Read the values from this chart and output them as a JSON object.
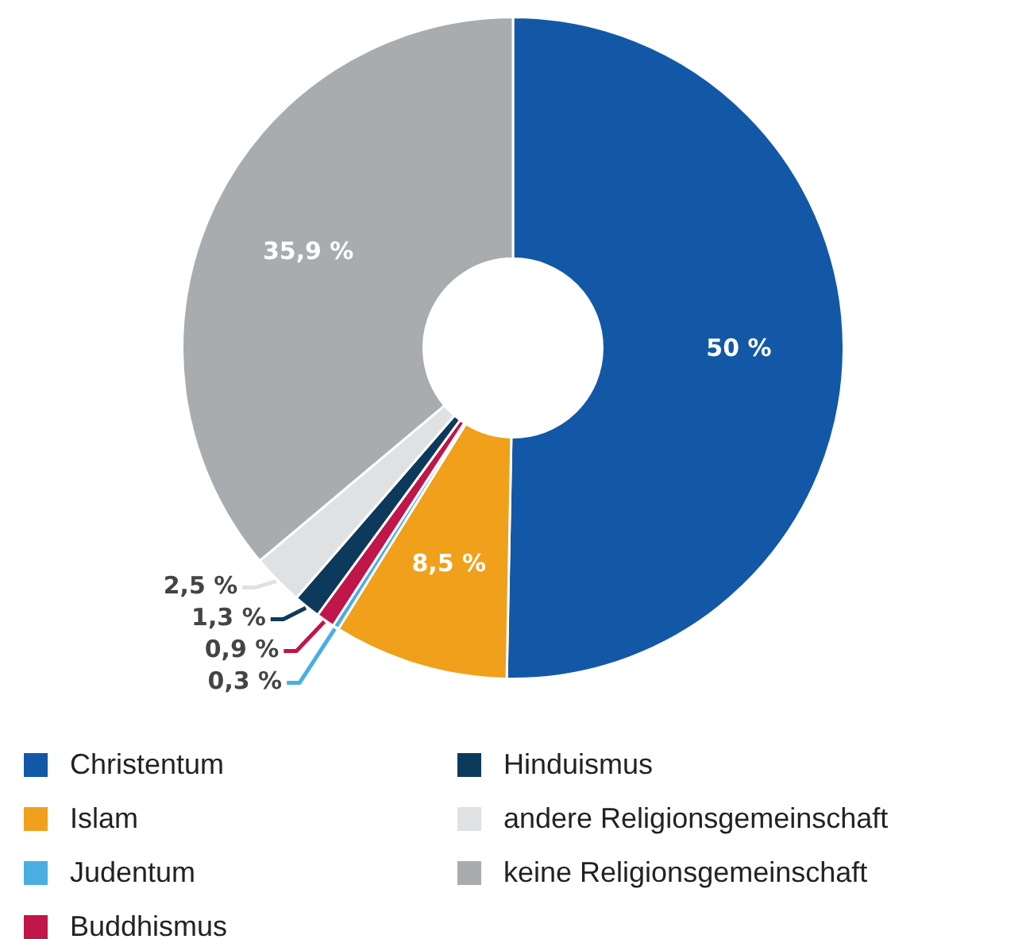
{
  "chart_data": {
    "type": "donut",
    "categories": [
      "Christentum",
      "Islam",
      "Judentum",
      "Buddhismus",
      "Hinduismus",
      "andere Religionsgemeinschaft",
      "keine Religionsgemeinschaft"
    ],
    "values": [
      50,
      8.5,
      0.3,
      0.9,
      1.3,
      2.5,
      35.9
    ],
    "colors": [
      "#1358a6",
      "#f0a01a",
      "#4aaee3",
      "#c0164a",
      "#0d3a5c",
      "#e0e1e2",
      "#a9acaf"
    ],
    "value_labels": [
      "50 %",
      "8,5 %",
      "0,3 %",
      "0,9 %",
      "1,3 %",
      "2,5 %",
      "35,9 %"
    ],
    "legend": "bottom"
  }
}
